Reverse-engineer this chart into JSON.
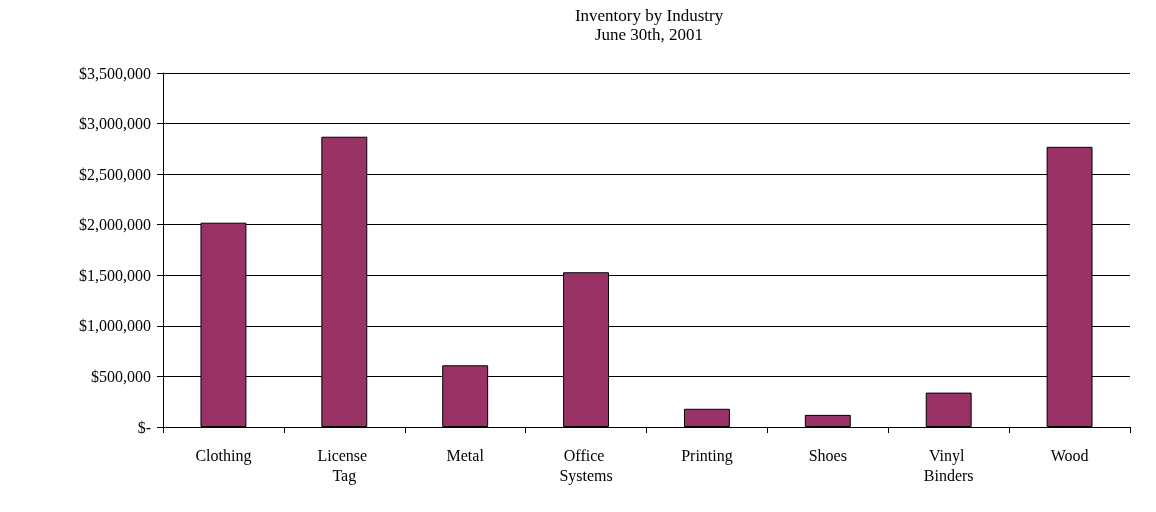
{
  "chart_data": {
    "type": "bar",
    "title": "Inventory by Industry",
    "subtitle": "June 30th, 2001",
    "categories": [
      "Clothing",
      "License Tag",
      "Metal",
      "Office Systems",
      "Printing",
      "Shoes",
      "Vinyl Binders",
      "Wood"
    ],
    "values": [
      2020000,
      2870000,
      610000,
      1530000,
      180000,
      120000,
      340000,
      2770000
    ],
    "color": "#993366",
    "ylim": [
      0,
      3500000
    ],
    "yticks": [
      {
        "value": 0,
        "label": "$-"
      },
      {
        "value": 500000,
        "label": "$500,000"
      },
      {
        "value": 1000000,
        "label": "$1,000,000"
      },
      {
        "value": 1500000,
        "label": "$1,500,000"
      },
      {
        "value": 2000000,
        "label": "$2,000,000"
      },
      {
        "value": 2500000,
        "label": "$2,500,000"
      },
      {
        "value": 3000000,
        "label": "$3,000,000"
      },
      {
        "value": 3500000,
        "label": "$3,500,000"
      }
    ],
    "grid": "y"
  }
}
